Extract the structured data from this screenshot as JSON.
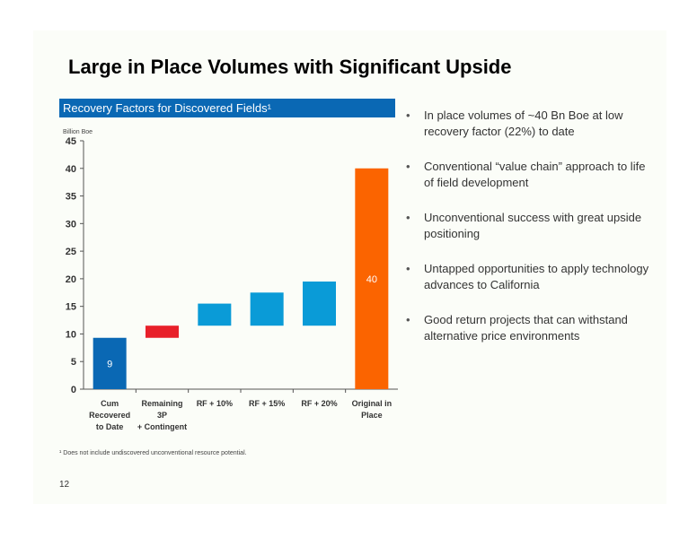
{
  "slide": {
    "title": "Large in Place Volumes with Significant Upside",
    "chart_header": "Recovery Factors for Discovered Fields¹",
    "bullets": [
      "In place volumes of ~40 Bn Boe at low recovery factor (22%) to date",
      "Conventional “value chain” approach to life of field development",
      "Unconventional success with great upside positioning",
      "Untapped opportunities to apply technology advances to California",
      "Good return projects that can withstand alternative price environments"
    ],
    "footnote": "¹ Does not include undiscovered unconventional resource potential.",
    "page_number": "12"
  },
  "chart_data": {
    "type": "bar",
    "subtype": "waterfall",
    "ylabel": "Billion Boe",
    "ylim": [
      0,
      45
    ],
    "yticks": [
      0,
      5,
      10,
      15,
      20,
      25,
      30,
      35,
      40,
      45
    ],
    "grid": false,
    "categories": [
      [
        "Cum",
        "Recovered",
        "to Date"
      ],
      [
        "Remaining",
        "3P",
        "+ Contingent"
      ],
      [
        "RF + 10%"
      ],
      [
        "RF + 15%"
      ],
      [
        "RF + 20%"
      ],
      [
        "Original in",
        "Place"
      ]
    ],
    "bars": [
      {
        "bottom": 0,
        "top": 9.3,
        "color": "#0a68b4",
        "label": "9"
      },
      {
        "bottom": 9.3,
        "top": 11.5,
        "color": "#e8202a",
        "label": ""
      },
      {
        "bottom": 11.5,
        "top": 15.5,
        "color": "#0a9bd7",
        "label": ""
      },
      {
        "bottom": 11.5,
        "top": 17.5,
        "color": "#0a9bd7",
        "label": ""
      },
      {
        "bottom": 11.5,
        "top": 19.5,
        "color": "#0a9bd7",
        "label": ""
      },
      {
        "bottom": 0,
        "top": 40,
        "color": "#fb6400",
        "label": "40"
      }
    ]
  }
}
